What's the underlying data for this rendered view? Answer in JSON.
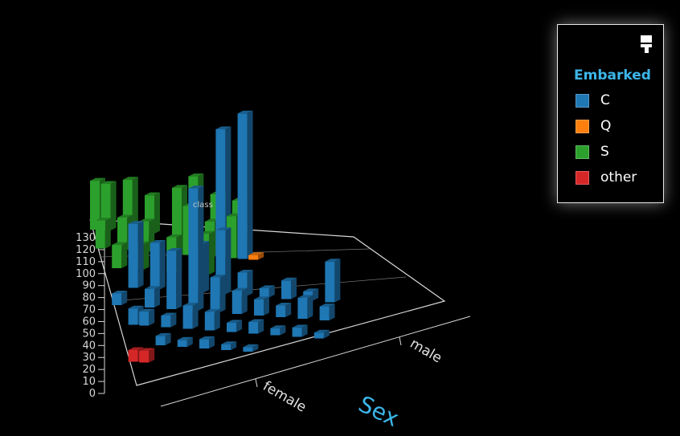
{
  "chart_data": {
    "type": "bar3d",
    "title": "",
    "xlabel": "Sex",
    "ylabel": "class",
    "zlim": [
      0,
      130
    ],
    "z_ticks": [
      "0",
      "10",
      "20",
      "30",
      "40",
      "50",
      "60",
      "70",
      "80",
      "90",
      "100",
      "110",
      "120",
      "130"
    ],
    "x_categories": [
      "female",
      "male"
    ],
    "legend": {
      "title": "Embarked",
      "position": "top-right",
      "items": [
        {
          "label": "C",
          "color": "#1f77b4"
        },
        {
          "label": "Q",
          "color": "#ff7f0e"
        },
        {
          "label": "S",
          "color": "#2ca02c"
        },
        {
          "label": "other",
          "color": "#d62728"
        }
      ]
    },
    "series": [
      {
        "name": "C",
        "color": "#1f77b4"
      },
      {
        "name": "Q",
        "color": "#ff7f0e"
      },
      {
        "name": "S",
        "color": "#2ca02c"
      },
      {
        "name": "other",
        "color": "#d62728"
      }
    ],
    "bars": [
      {
        "series": "S",
        "col": 0,
        "row": 0,
        "value": 42
      },
      {
        "series": "S",
        "col": 1,
        "row": 0,
        "value": 40
      },
      {
        "series": "S",
        "col": 3,
        "row": 0,
        "value": 45
      },
      {
        "series": "S",
        "col": 5,
        "row": 0,
        "value": 33
      },
      {
        "series": "S",
        "col": 9,
        "row": 0,
        "value": 52
      },
      {
        "series": "S",
        "col": 11,
        "row": 0,
        "value": 38
      },
      {
        "series": "S",
        "col": 13,
        "row": 0,
        "value": 34
      },
      {
        "series": "S",
        "col": 0,
        "row": 1,
        "value": 24
      },
      {
        "series": "S",
        "col": 2,
        "row": 1,
        "value": 28
      },
      {
        "series": "S",
        "col": 4,
        "row": 1,
        "value": 26
      },
      {
        "series": "S",
        "col": 7,
        "row": 1,
        "value": 57
      },
      {
        "series": "S",
        "col": 8,
        "row": 1,
        "value": 42
      },
      {
        "series": "S",
        "col": 10,
        "row": 1,
        "value": 30
      },
      {
        "series": "S",
        "col": 12,
        "row": 1,
        "value": 36
      },
      {
        "series": "S",
        "col": 1,
        "row": 2,
        "value": 20
      },
      {
        "series": "S",
        "col": 3,
        "row": 2,
        "value": 22
      },
      {
        "series": "S",
        "col": 6,
        "row": 2,
        "value": 30
      },
      {
        "series": "S",
        "col": 9,
        "row": 2,
        "value": 35
      },
      {
        "series": "Q",
        "col": 14,
        "row": 1,
        "value": 4
      },
      {
        "series": "C",
        "col": 11,
        "row": 1,
        "value": 110
      },
      {
        "series": "C",
        "col": 13,
        "row": 1,
        "value": 125
      },
      {
        "series": "C",
        "col": 2,
        "row": 3,
        "value": 55
      },
      {
        "series": "C",
        "col": 4,
        "row": 3,
        "value": 40
      },
      {
        "series": "C",
        "col": 8,
        "row": 3,
        "value": 42
      },
      {
        "series": "C",
        "col": 10,
        "row": 3,
        "value": 55
      },
      {
        "series": "C",
        "col": 12,
        "row": 3,
        "value": 20
      },
      {
        "series": "C",
        "col": 14,
        "row": 3,
        "value": 8
      },
      {
        "series": "C",
        "col": 16,
        "row": 3,
        "value": 16
      },
      {
        "series": "C",
        "col": 18,
        "row": 3,
        "value": 8
      },
      {
        "series": "C",
        "col": 20,
        "row": 3,
        "value": 35
      },
      {
        "series": "C",
        "col": 0,
        "row": 4,
        "value": 10
      },
      {
        "series": "C",
        "col": 3,
        "row": 4,
        "value": 16
      },
      {
        "series": "C",
        "col": 5,
        "row": 4,
        "value": 50
      },
      {
        "series": "C",
        "col": 7,
        "row": 4,
        "value": 105
      },
      {
        "series": "C",
        "col": 9,
        "row": 4,
        "value": 30
      },
      {
        "series": "C",
        "col": 11,
        "row": 4,
        "value": 20
      },
      {
        "series": "C",
        "col": 13,
        "row": 4,
        "value": 14
      },
      {
        "series": "C",
        "col": 15,
        "row": 4,
        "value": 10
      },
      {
        "series": "C",
        "col": 17,
        "row": 4,
        "value": 18
      },
      {
        "series": "C",
        "col": 19,
        "row": 4,
        "value": 12
      },
      {
        "series": "C",
        "col": 1,
        "row": 5,
        "value": 14
      },
      {
        "series": "C",
        "col": 2,
        "row": 5,
        "value": 12
      },
      {
        "series": "C",
        "col": 4,
        "row": 5,
        "value": 10
      },
      {
        "series": "C",
        "col": 6,
        "row": 5,
        "value": 20
      },
      {
        "series": "C",
        "col": 8,
        "row": 5,
        "value": 16
      },
      {
        "series": "C",
        "col": 10,
        "row": 5,
        "value": 8
      },
      {
        "series": "C",
        "col": 12,
        "row": 5,
        "value": 10
      },
      {
        "series": "C",
        "col": 14,
        "row": 5,
        "value": 6
      },
      {
        "series": "C",
        "col": 16,
        "row": 5,
        "value": 8
      },
      {
        "series": "C",
        "col": 18,
        "row": 5,
        "value": 5
      },
      {
        "series": "C",
        "col": 3,
        "row": 6,
        "value": 8
      },
      {
        "series": "C",
        "col": 5,
        "row": 6,
        "value": 6
      },
      {
        "series": "C",
        "col": 7,
        "row": 6,
        "value": 8
      },
      {
        "series": "C",
        "col": 9,
        "row": 6,
        "value": 5
      },
      {
        "series": "C",
        "col": 11,
        "row": 6,
        "value": 4
      },
      {
        "series": "other",
        "col": 0,
        "row": 7,
        "value": 10
      },
      {
        "series": "other",
        "col": 1,
        "row": 7,
        "value": 10
      }
    ]
  }
}
